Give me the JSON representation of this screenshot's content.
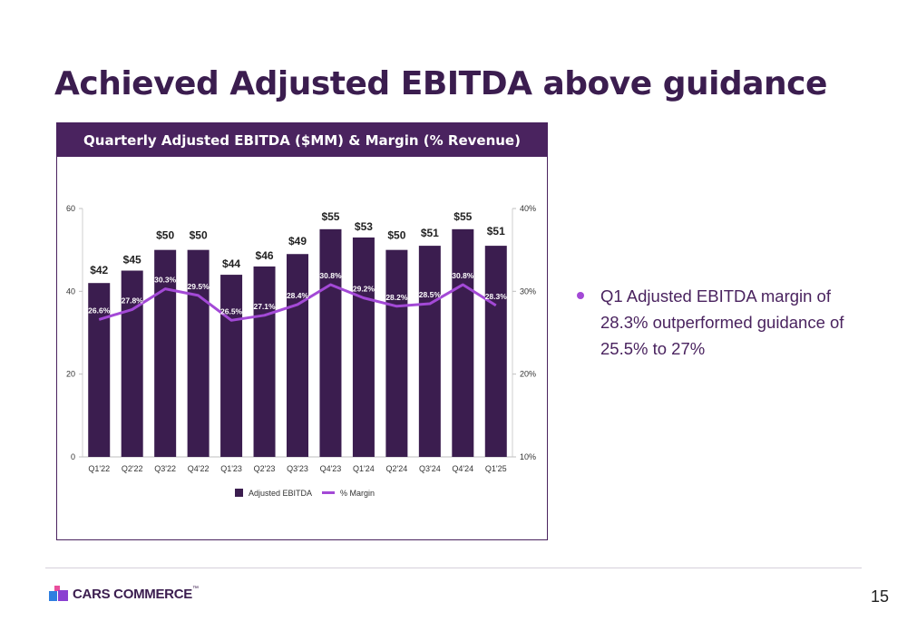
{
  "slide": {
    "title": "Achieved Adjusted EBITDA above guidance",
    "page_number": "15"
  },
  "chart_header": "Quarterly Adjusted EBITDA ($MM) & Margin (% Revenue)",
  "bullet": {
    "text": "Q1 Adjusted EBITDA margin of 28.3% outperformed guidance of 25.5% to 27%"
  },
  "logo": {
    "text": "CARS COMMERCE",
    "trademark": "™"
  },
  "colors": {
    "bar": "#3b1d4f",
    "line": "#a349d6",
    "header_bg": "#4a235f",
    "accent": "#a349d6"
  },
  "chart_data": {
    "type": "bar",
    "title": "Quarterly Adjusted EBITDA ($MM) & Margin (% Revenue)",
    "categories": [
      "Q1'22",
      "Q2'22",
      "Q3'22",
      "Q4'22",
      "Q1'23",
      "Q2'23",
      "Q3'23",
      "Q4'23",
      "Q1'24",
      "Q2'24",
      "Q3'24",
      "Q4'24",
      "Q1'25"
    ],
    "series": [
      {
        "name": "Adjusted EBITDA",
        "type": "bar",
        "axis": "left",
        "values": [
          42,
          45,
          50,
          50,
          44,
          46,
          49,
          55,
          53,
          50,
          51,
          55,
          51
        ],
        "labels": [
          "$42",
          "$45",
          "$50",
          "$50",
          "$44",
          "$46",
          "$49",
          "$55",
          "$53",
          "$50",
          "$51",
          "$55",
          "$51"
        ]
      },
      {
        "name": "% Margin",
        "type": "line",
        "axis": "right",
        "values": [
          26.6,
          27.8,
          30.3,
          29.5,
          26.5,
          27.1,
          28.4,
          30.8,
          29.2,
          28.2,
          28.5,
          30.8,
          28.3
        ],
        "labels": [
          "26.6%",
          "27.8%",
          "30.3%",
          "29.5%",
          "26.5%",
          "27.1%",
          "28.4%",
          "30.8%",
          "29.2%",
          "28.2%",
          "28.5%",
          "30.8%",
          "28.3%"
        ]
      }
    ],
    "ylim": [
      0,
      60
    ],
    "yticks": [
      "0",
      "20",
      "40",
      "60"
    ],
    "y2lim": [
      10,
      40
    ],
    "y2ticks": [
      "10%",
      "20%",
      "30%",
      "40%"
    ],
    "legend_position": "bottom",
    "grid": false
  }
}
